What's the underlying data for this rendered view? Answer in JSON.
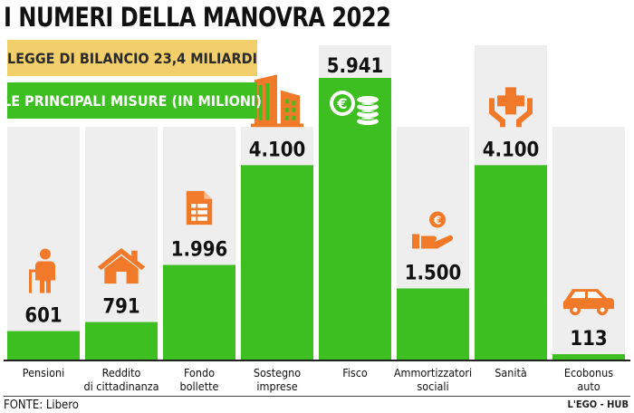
{
  "title": "I NUMERI DELLA MANOVRA 2022",
  "legend": {
    "budget_label": "LEGGE DI BILANCIO 23,4 MILIARDI",
    "measures_label": "LE PRINCIPALI MISURE (IN MILIONI)"
  },
  "colors": {
    "bar": "#3dbf22",
    "column_bg": "#eeeeee",
    "icon": "#f07a2a",
    "budget_box": "#f2cf6b"
  },
  "chart_data": {
    "type": "bar",
    "categories": [
      [
        "Pensioni"
      ],
      [
        "Reddito",
        "di cittadinanza"
      ],
      [
        "Fondo",
        "bollette"
      ],
      [
        "Sostegno",
        "imprese"
      ],
      [
        "Fisco"
      ],
      [
        "Ammortizzatori",
        "sociali"
      ],
      [
        "Sanità"
      ],
      [
        "Ecobonus",
        "auto"
      ]
    ],
    "values": [
      601,
      791,
      1996,
      4100,
      5941,
      1500,
      4100,
      113
    ],
    "value_labels": [
      "601",
      "791",
      "1.996",
      "4.100",
      "5.941",
      "1.500",
      "4.100",
      "113"
    ],
    "icons": [
      "elderly-person-icon",
      "house-icon",
      "document-icon",
      "buildings-icon",
      "coins-icon",
      "hand-euro-icon",
      "hands-cross-icon",
      "car-icon"
    ]
  },
  "footer": {
    "source": "FONTE: Libero",
    "credit": "L'EGO - HUB"
  }
}
